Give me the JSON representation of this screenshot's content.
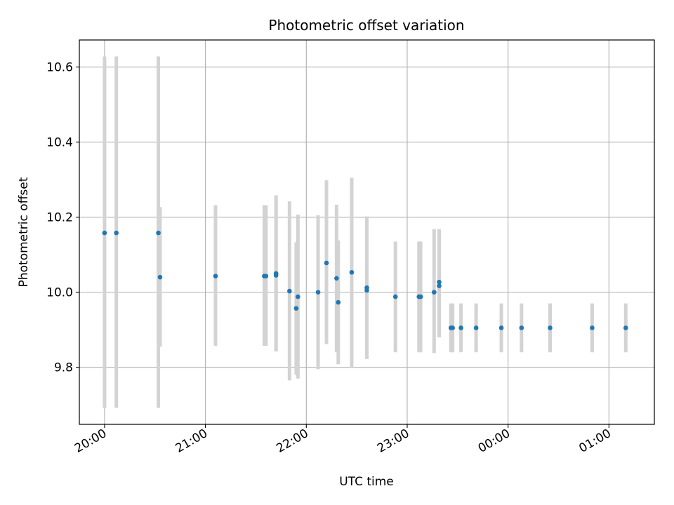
{
  "chart_data": {
    "type": "scatter",
    "title": "Photometric offset variation",
    "xlabel": "UTC time",
    "ylabel": "Photometric offset",
    "grid": true,
    "x_axis": {
      "kind": "time",
      "start": "19:45",
      "end": "01:27",
      "ticks": [
        "20:00",
        "21:00",
        "22:00",
        "23:00",
        "00:00",
        "01:00"
      ]
    },
    "y_axis": {
      "ylim": [
        9.648,
        10.672
      ],
      "ticks": [
        "9.8",
        "10.0",
        "10.2",
        "10.4",
        "10.6"
      ]
    },
    "marker_color": "#1f77b4",
    "errorbar_color": "#d3d3d3",
    "series": [
      {
        "points": [
          {
            "time": "20:00",
            "value": 10.158,
            "low": 9.692,
            "high": 10.628
          },
          {
            "time": "20:07",
            "value": 10.158,
            "low": 9.692,
            "high": 10.628
          },
          {
            "time": "20:32",
            "value": 10.158,
            "low": 9.692,
            "high": 10.628
          },
          {
            "time": "20:33",
            "value": 10.04,
            "low": 9.855,
            "high": 10.227
          },
          {
            "time": "21:06",
            "value": 10.043,
            "low": 9.857,
            "high": 10.232
          },
          {
            "time": "21:35",
            "value": 10.043,
            "low": 9.857,
            "high": 10.232
          },
          {
            "time": "21:36",
            "value": 10.043,
            "low": 9.857,
            "high": 10.232
          },
          {
            "time": "21:42",
            "value": 10.045,
            "low": 9.845,
            "high": 10.244
          },
          {
            "time": "21:42",
            "value": 10.05,
            "low": 9.842,
            "high": 10.258
          },
          {
            "time": "21:50",
            "value": 10.003,
            "low": 9.765,
            "high": 10.242
          },
          {
            "time": "21:54",
            "value": 9.957,
            "low": 9.78,
            "high": 10.133
          },
          {
            "time": "21:55",
            "value": 9.988,
            "low": 9.77,
            "high": 10.207
          },
          {
            "time": "22:07",
            "value": 10.0,
            "low": 9.795,
            "high": 10.205
          },
          {
            "time": "22:12",
            "value": 10.078,
            "low": 9.862,
            "high": 10.298
          },
          {
            "time": "22:18",
            "value": 10.037,
            "low": 9.84,
            "high": 10.233
          },
          {
            "time": "22:19",
            "value": 9.973,
            "low": 9.808,
            "high": 10.138
          },
          {
            "time": "22:27",
            "value": 10.053,
            "low": 9.8,
            "high": 10.305
          },
          {
            "time": "22:36",
            "value": 10.012,
            "low": 9.822,
            "high": 10.202
          },
          {
            "time": "22:36",
            "value": 10.005,
            "low": 9.828,
            "high": 10.182
          },
          {
            "time": "22:53",
            "value": 9.988,
            "low": 9.84,
            "high": 10.135
          },
          {
            "time": "23:07",
            "value": 9.988,
            "low": 9.84,
            "high": 10.135
          },
          {
            "time": "23:08",
            "value": 9.988,
            "low": 9.84,
            "high": 10.135
          },
          {
            "time": "23:16",
            "value": 10.0,
            "low": 9.838,
            "high": 10.168
          },
          {
            "time": "23:19",
            "value": 10.027,
            "low": 9.88,
            "high": 10.168
          },
          {
            "time": "23:19",
            "value": 10.017,
            "low": 9.88,
            "high": 10.152
          },
          {
            "time": "23:26",
            "value": 9.905,
            "low": 9.84,
            "high": 9.97
          },
          {
            "time": "23:27",
            "value": 9.905,
            "low": 9.84,
            "high": 9.97
          },
          {
            "time": "23:32",
            "value": 9.905,
            "low": 9.84,
            "high": 9.97
          },
          {
            "time": "23:41",
            "value": 9.905,
            "low": 9.84,
            "high": 9.97
          },
          {
            "time": "23:56",
            "value": 9.905,
            "low": 9.84,
            "high": 9.97
          },
          {
            "time": "00:08",
            "value": 9.905,
            "low": 9.84,
            "high": 9.97
          },
          {
            "time": "00:25",
            "value": 9.905,
            "low": 9.84,
            "high": 9.97
          },
          {
            "time": "00:50",
            "value": 9.905,
            "low": 9.84,
            "high": 9.97
          },
          {
            "time": "01:10",
            "value": 9.905,
            "low": 9.84,
            "high": 9.97
          }
        ]
      }
    ]
  }
}
